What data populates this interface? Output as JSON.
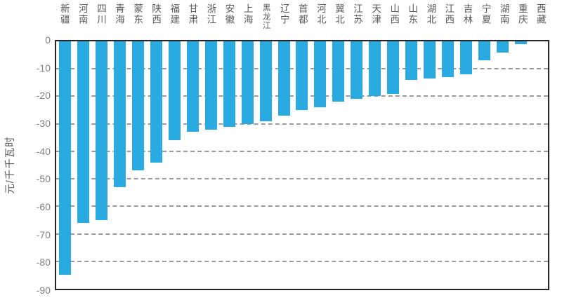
{
  "chart_data": {
    "type": "bar",
    "title": "",
    "xlabel": "",
    "ylabel": "元/千千瓦时",
    "ylim": [
      -90,
      0
    ],
    "yticks": [
      0,
      -10,
      -20,
      -30,
      -40,
      -50,
      -60,
      -70,
      -80,
      -90
    ],
    "grid": "horizontal dashed gridlines, solid black frame",
    "legend": "none",
    "categories": [
      "新疆",
      "河南",
      "四川",
      "青海",
      "蒙东",
      "陕西",
      "福建",
      "甘肃",
      "浙江",
      "安徽",
      "上海",
      "黑龙江",
      "辽宁",
      "首都",
      "河北",
      "冀北",
      "江苏",
      "天津",
      "山西",
      "山东",
      "湖北",
      "江西",
      "吉林",
      "宁夏",
      "湖南",
      "重庆",
      "西藏"
    ],
    "values": [
      -85,
      -66,
      -65,
      -53,
      -47,
      -44,
      -36,
      -33,
      -32,
      -31,
      -30,
      -29,
      -27,
      -25,
      -24,
      -22,
      -21,
      -20,
      -19,
      -14,
      -13.5,
      -13,
      -12,
      -7,
      -4,
      -1,
      0
    ],
    "colors": {
      "bar": "#29ABE2",
      "axis": "#262626",
      "grid": "#9a9a9a",
      "tick_label": "#7f7f7f",
      "category_label": "#595959"
    }
  }
}
